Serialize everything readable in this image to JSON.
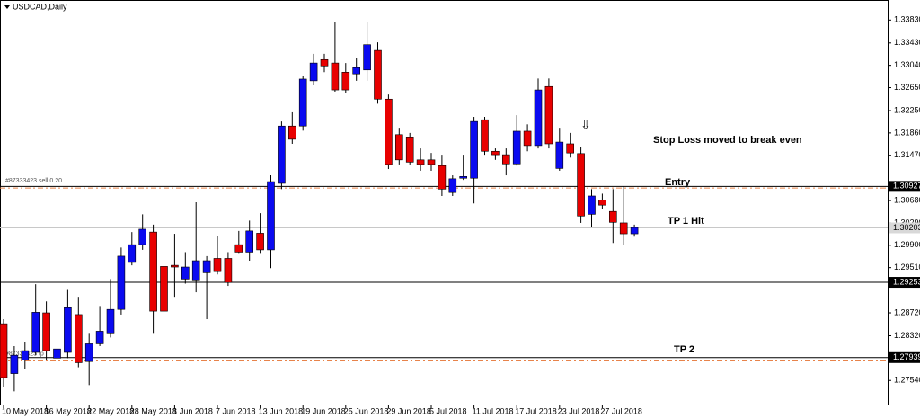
{
  "chart_data": {
    "type": "candlestick",
    "title": "USDCAD,Daily",
    "categories": [
      "10 May 2018",
      null,
      null,
      null,
      "16 May 2018",
      null,
      null,
      null,
      "22 May 2018",
      null,
      null,
      null,
      "28 May 2018",
      null,
      null,
      null,
      "1 Jun 2018",
      null,
      null,
      null,
      "7 Jun 2018",
      null,
      null,
      null,
      "13 Jun 2018",
      null,
      null,
      null,
      "19 Jun 2018",
      null,
      null,
      null,
      "25 Jun 2018",
      null,
      null,
      null,
      "29 Jun 2018",
      null,
      null,
      null,
      "5 Jul 2018",
      null,
      null,
      null,
      "11 Jul 2018",
      null,
      null,
      null,
      "17 Jul 2018",
      null,
      null,
      null,
      "23 Jul 2018",
      null,
      null,
      null,
      "27 Jul 2018",
      null,
      null,
      null
    ],
    "open": [
      1.2853,
      1.2766,
      1.279,
      1.2803,
      1.2872,
      1.2793,
      1.2803,
      1.2869,
      1.2787,
      1.2818,
      1.2837,
      1.2878,
      1.296,
      1.2991,
      1.3013,
      1.2953,
      1.2955,
      1.2931,
      1.2928,
      1.2942,
      1.2967,
      1.2967,
      1.2991,
      1.2978,
      1.3011,
      1.2982,
      1.3098,
      1.3198,
      1.3198,
      1.3277,
      1.3314,
      1.3308,
      1.3292,
      1.3289,
      1.3296,
      1.333,
      1.3245,
      1.3183,
      1.3179,
      1.3139,
      1.3139,
      1.3129,
      1.3082,
      1.3107,
      1.3107,
      1.3209,
      1.3154,
      1.3148,
      1.3132,
      1.3189,
      1.3164,
      1.3267,
      1.3124,
      1.3167,
      1.315,
      1.3044,
      1.3069,
      1.3049,
      1.3029,
      1.301
    ],
    "high": [
      1.2861,
      1.2814,
      1.2821,
      1.2922,
      1.2892,
      1.2837,
      1.2912,
      1.29,
      1.2837,
      1.2884,
      1.2931,
      1.2986,
      1.3013,
      1.3044,
      1.3026,
      1.2963,
      1.301,
      1.2978,
      1.3065,
      1.2971,
      1.3007,
      1.2978,
      1.3015,
      1.3033,
      1.3046,
      1.3112,
      1.3206,
      1.3222,
      1.3285,
      1.3324,
      1.3324,
      1.3379,
      1.3308,
      1.3316,
      1.3379,
      1.3344,
      1.3253,
      1.3195,
      1.3186,
      1.3159,
      1.3151,
      1.3148,
      1.3112,
      1.3148,
      1.3214,
      1.3214,
      1.3159,
      1.3159,
      1.3217,
      1.3201,
      1.3281,
      1.3281,
      1.3195,
      1.3186,
      1.3162,
      1.3088,
      1.308,
      1.3088,
      1.3093,
      1.3026
    ],
    "low": [
      1.2743,
      1.2735,
      1.2774,
      1.2798,
      1.279,
      1.2782,
      1.2793,
      1.2777,
      1.2746,
      1.2814,
      1.2829,
      1.2869,
      1.2955,
      1.2982,
      1.2837,
      1.2821,
      1.29,
      1.2923,
      1.2908,
      1.2861,
      1.2939,
      1.2919,
      1.2975,
      1.2963,
      1.2975,
      1.295,
      1.3088,
      1.3167,
      1.319,
      1.3269,
      1.3292,
      1.3258,
      1.3256,
      1.3277,
      1.3277,
      1.3237,
      1.3123,
      1.3131,
      1.3131,
      1.312,
      1.312,
      1.3076,
      1.3076,
      1.3104,
      1.3063,
      1.3148,
      1.3139,
      1.3112,
      1.3129,
      1.3154,
      1.3159,
      1.3159,
      1.312,
      1.3143,
      1.3029,
      1.3022,
      1.3054,
      1.2994,
      1.2991,
      1.3005
    ],
    "close": [
      1.2759,
      1.2798,
      1.2806,
      1.2873,
      1.2806,
      1.2809,
      1.2881,
      1.2785,
      1.2818,
      1.284,
      1.2878,
      1.2971,
      1.2991,
      1.3018,
      1.2875,
      1.2875,
      1.2952,
      1.2952,
      1.2963,
      1.2963,
      1.2944,
      1.2925,
      1.2978,
      1.3015,
      1.2982,
      1.3101,
      1.3198,
      1.3175,
      1.328,
      1.3308,
      1.3303,
      1.3261,
      1.3261,
      1.33,
      1.334,
      1.3245,
      1.3131,
      1.3139,
      1.3135,
      1.3131,
      1.3131,
      1.3088,
      1.3106,
      1.311,
      1.3206,
      1.3154,
      1.3148,
      1.3132,
      1.3189,
      1.3164,
      1.3261,
      1.3167,
      1.317,
      1.3151,
      1.3041,
      1.3076,
      1.306,
      1.303,
      1.301,
      1.3021
    ],
    "up_color": "#0a0af0",
    "down_color": "#e80000",
    "ylim": [
      1.2712,
      1.3418
    ],
    "yticks": [
      {
        "value": 1.3383,
        "label": "1.33830"
      },
      {
        "value": 1.3343,
        "label": "1.33430"
      },
      {
        "value": 1.3304,
        "label": "1.33040"
      },
      {
        "value": 1.3265,
        "label": "1.32650"
      },
      {
        "value": 1.3225,
        "label": "1.32250"
      },
      {
        "value": 1.3186,
        "label": "1.31860"
      },
      {
        "value": 1.3147,
        "label": "1.31470"
      },
      {
        "value": 1.3068,
        "label": "1.30680"
      },
      {
        "value": 1.3029,
        "label": "1.30290"
      },
      {
        "value": 1.299,
        "label": "1.29900"
      },
      {
        "value": 1.2951,
        "label": "1.29510"
      },
      {
        "value": 1.2872,
        "label": "1.28720"
      },
      {
        "value": 1.2832,
        "label": "1.28320"
      },
      {
        "value": 1.2754,
        "label": "1.27540"
      }
    ],
    "levels": [
      {
        "value": 1.30927,
        "color": "#000000",
        "label_fill": "#000000",
        "label_color": "#ffffff"
      },
      {
        "value": 1.30203,
        "color": "#c8c8c8",
        "label_fill": "#d8d8d8",
        "label_color": "#000000"
      },
      {
        "value": 1.29253,
        "color": "#000000",
        "label_fill": "#000000",
        "label_color": "#ffffff"
      },
      {
        "value": 1.27939,
        "color": "#000000",
        "label_fill": "#000000",
        "label_color": "#ffffff"
      }
    ],
    "order_lines": [
      {
        "value": 1.309,
        "color": "#e8834a",
        "label": "#87333423 sell 0.20"
      },
      {
        "value": 1.2788,
        "color": "#e8834a",
        "label": "#87333423 tp"
      }
    ],
    "annotations": [
      "Stop Loss moved to break even",
      "Entry",
      "TP 1 Hit",
      "TP 2"
    ]
  }
}
